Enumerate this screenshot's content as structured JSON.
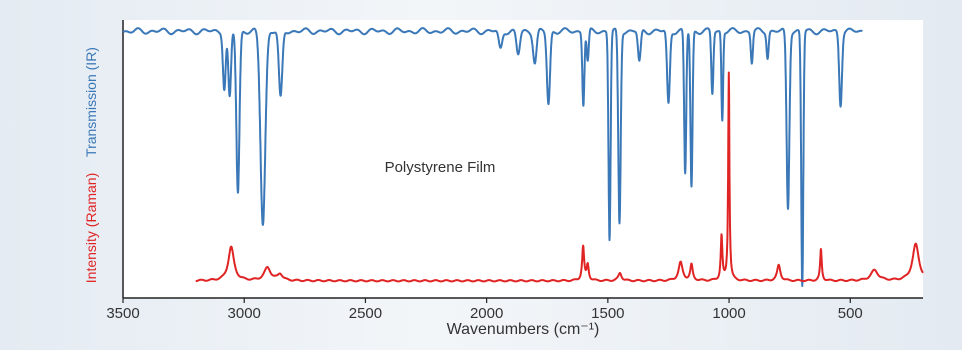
{
  "chart_data": {
    "type": "line",
    "annotation": "Polystyrene Film",
    "xlabel": "Wavenumbers  (cm⁻¹)",
    "xlim": [
      3500,
      200
    ],
    "x_ticks": [
      "3500",
      "3000",
      "2500",
      "2000",
      "1500",
      "1000",
      "500"
    ],
    "x_tick_values": [
      3500,
      3000,
      2500,
      2000,
      1500,
      1000,
      500
    ],
    "grid": false,
    "series": [
      {
        "name": "Transmission (IR)",
        "ylabel": "Transmission (IR)",
        "color": "#3b78b8",
        "ylim": [
          0,
          100
        ],
        "baseline": 98,
        "x_range": [
          3500,
          450
        ],
        "bands": [
          {
            "x": 3082,
            "depth": 22,
            "width": 8
          },
          {
            "x": 3060,
            "depth": 26,
            "width": 8
          },
          {
            "x": 3026,
            "depth": 62,
            "width": 9
          },
          {
            "x": 2923,
            "depth": 74,
            "width": 14
          },
          {
            "x": 2850,
            "depth": 26,
            "width": 10
          },
          {
            "x": 1943,
            "depth": 7,
            "width": 10
          },
          {
            "x": 1870,
            "depth": 9,
            "width": 10
          },
          {
            "x": 1801,
            "depth": 12,
            "width": 10
          },
          {
            "x": 1745,
            "depth": 28,
            "width": 9
          },
          {
            "x": 1601,
            "depth": 28,
            "width": 6
          },
          {
            "x": 1583,
            "depth": 12,
            "width": 6
          },
          {
            "x": 1493,
            "depth": 80,
            "width": 6
          },
          {
            "x": 1452,
            "depth": 74,
            "width": 7
          },
          {
            "x": 1370,
            "depth": 12,
            "width": 8
          },
          {
            "x": 1250,
            "depth": 28,
            "width": 8
          },
          {
            "x": 1181,
            "depth": 55,
            "width": 6
          },
          {
            "x": 1155,
            "depth": 60,
            "width": 6
          },
          {
            "x": 1069,
            "depth": 24,
            "width": 6
          },
          {
            "x": 1028,
            "depth": 34,
            "width": 5
          },
          {
            "x": 906,
            "depth": 12,
            "width": 6
          },
          {
            "x": 841,
            "depth": 10,
            "width": 6
          },
          {
            "x": 757,
            "depth": 68,
            "width": 8
          },
          {
            "x": 698,
            "depth": 98,
            "width": 6
          },
          {
            "x": 540,
            "depth": 28,
            "width": 8
          }
        ]
      },
      {
        "name": "Intensity (Raman)",
        "ylabel": "Intensity (Raman)",
        "color": "#e02424",
        "ylim": [
          0,
          100
        ],
        "baseline": 2,
        "x_range": [
          3200,
          200
        ],
        "bands": [
          {
            "x": 3054,
            "height": 13,
            "width": 14
          },
          {
            "x": 2904,
            "height": 5,
            "width": 16
          },
          {
            "x": 2852,
            "height": 2.5,
            "width": 12
          },
          {
            "x": 1602,
            "height": 13,
            "width": 5
          },
          {
            "x": 1583,
            "height": 6,
            "width": 5
          },
          {
            "x": 1450,
            "height": 3,
            "width": 8
          },
          {
            "x": 1200,
            "height": 7,
            "width": 10
          },
          {
            "x": 1155,
            "height": 6,
            "width": 6
          },
          {
            "x": 1031,
            "height": 17,
            "width": 4
          },
          {
            "x": 1001,
            "height": 80,
            "width": 3
          },
          {
            "x": 795,
            "height": 6,
            "width": 8
          },
          {
            "x": 621,
            "height": 12,
            "width": 4
          },
          {
            "x": 400,
            "height": 4,
            "width": 18
          },
          {
            "x": 230,
            "height": 14,
            "width": 16
          }
        ]
      }
    ]
  }
}
